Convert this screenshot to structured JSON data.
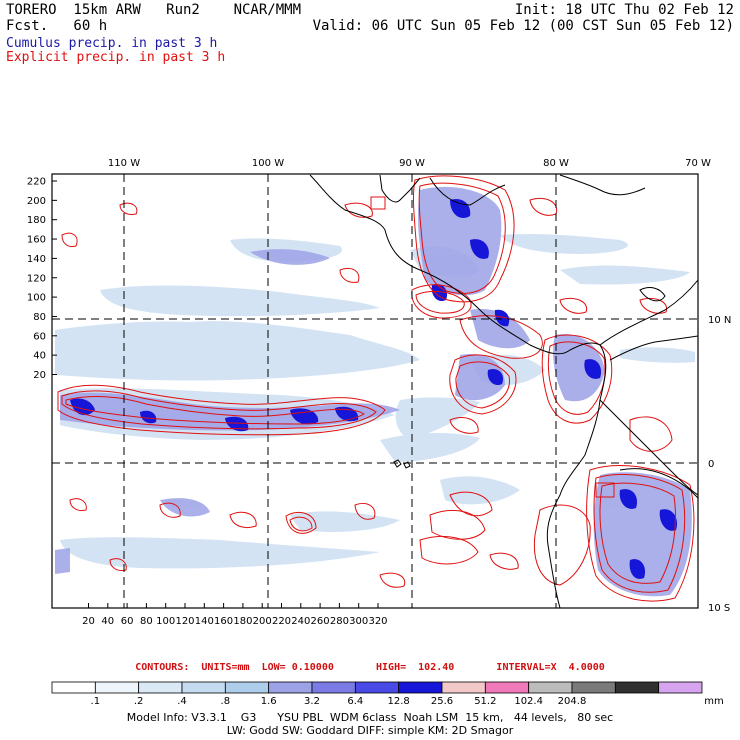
{
  "header": {
    "title": "TORERO  15km ARW   Run2    NCAR/MMM",
    "fcst": "Fcst.   60 h",
    "init": "Init: 18 UTC Thu 02 Feb 12",
    "valid": "Valid: 06 UTC Sun 05 Feb 12 (00 CST Sun 05 Feb 12)",
    "legend_cumulus": "Cumulus precip. in past 3 h",
    "legend_explicit": "Explicit precip. in past 3 h"
  },
  "colors": {
    "cumulus": "#1a1aa8",
    "explicit": "#e01010",
    "grid": "#000000"
  },
  "map": {
    "lon_labels": [
      "110 W",
      "100 W",
      "90 W",
      "80 W",
      "70 W"
    ],
    "lat_labels": [
      "10 N",
      "0",
      "10 S"
    ],
    "y_ticks": [
      "220",
      "200",
      "180",
      "160",
      "140",
      "120",
      "100",
      "80",
      "60",
      "40",
      "20"
    ],
    "x_ticks": [
      "20",
      "40",
      "60",
      "80",
      "100",
      "120",
      "140",
      "160",
      "180",
      "200",
      "220",
      "240",
      "260",
      "280",
      "300",
      "320"
    ]
  },
  "colorbar": {
    "contours_line": "CONTOURS:  UNITS=mm  LOW= 0.10000       HIGH=  102.40       INTERVAL=X  4.0000",
    "labels": [
      ".1",
      ".2",
      ".4",
      ".8",
      "1.6",
      "3.2",
      "6.4",
      "12.8",
      "25.6",
      "51.2",
      "102.4",
      "204.8"
    ],
    "unit": "mm",
    "colors": [
      "#ffffff",
      "#eef5fb",
      "#dbe9f6",
      "#c5dcf0",
      "#aecdeb",
      "#9da2e6",
      "#7b7be6",
      "#4949e6",
      "#1616d8",
      "#f2c9c9",
      "#f079b9",
      "#bcbcbc",
      "#7a7a7a",
      "#303030",
      "#d7a4f0"
    ]
  },
  "footer": {
    "line1": "Model Info: V3.3.1    G3      YSU PBL  WDM 6class  Noah LSM  15 km,   44 levels,   80 sec",
    "line2": "LW: Godd SW: Goddard DIFF: simple KM: 2D Smagor"
  }
}
